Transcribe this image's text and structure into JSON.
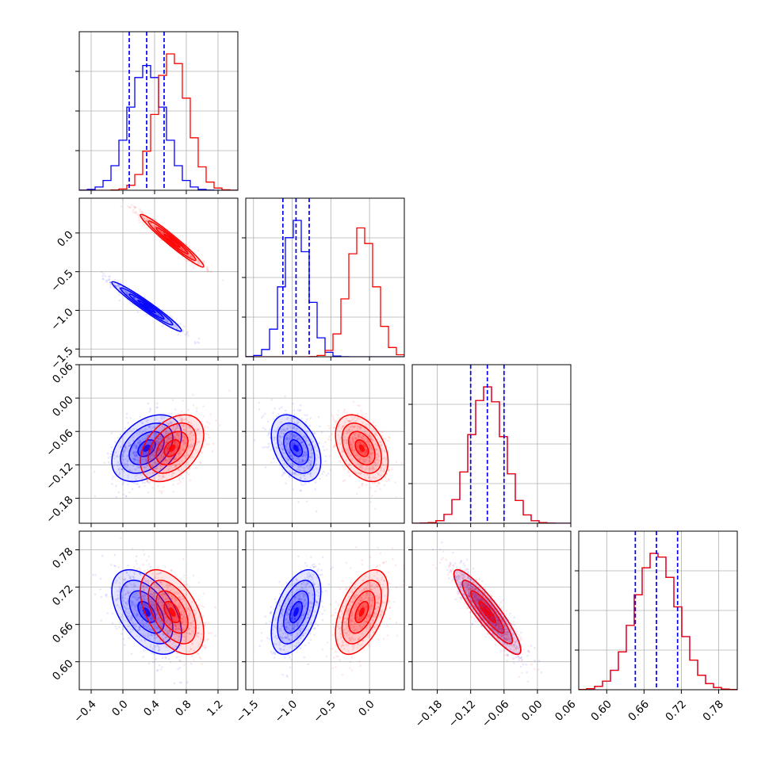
{
  "colors": {
    "series_a": "#0000ff",
    "series_b": "#ff0000",
    "grid": "#b0b0b0",
    "axes": "#000000"
  },
  "chart_data": {
    "type": "corner",
    "grid": true,
    "parameters": [
      {
        "range": [
          -0.55,
          1.45
        ],
        "ticks": [
          -0.4,
          0.0,
          0.4,
          0.8,
          1.2
        ],
        "tick_labels": [
          "−0.4",
          "0.0",
          "0.4",
          "0.8",
          "1.2"
        ]
      },
      {
        "range": [
          -1.6,
          0.45
        ],
        "ticks": [
          -1.5,
          -1.0,
          -0.5,
          0.0
        ],
        "tick_labels": [
          "−1.5",
          "−1.0",
          "−0.5",
          "0.0"
        ]
      },
      {
        "range": [
          -0.225,
          0.06
        ],
        "ticks": [
          -0.18,
          -0.12,
          -0.06,
          0.0,
          0.06
        ],
        "tick_labels": [
          "−0.18",
          "−0.12",
          "−0.06",
          "0.00",
          "0.06"
        ]
      },
      {
        "range": [
          0.555,
          0.81
        ],
        "ticks": [
          0.6,
          0.66,
          0.72,
          0.78
        ],
        "tick_labels": [
          "0.60",
          "0.66",
          "0.72",
          "0.78"
        ]
      }
    ],
    "y_tick_labels": {
      "1": [
        "0.0",
        "−0.5",
        "−1.0",
        "−1.5"
      ],
      "2": [
        "0.06",
        "0.00",
        "−0.06",
        "−0.12",
        "−0.18"
      ],
      "3": [
        "0.78",
        "0.72",
        "0.66",
        "0.60"
      ]
    },
    "series": [
      {
        "color": "#0000ff",
        "mean": [
          0.3,
          -0.95,
          -0.09,
          0.68
        ],
        "std": [
          0.22,
          0.16,
          0.03,
          0.034
        ],
        "quantiles": [
          [
            0.08,
            0.3,
            0.52
          ],
          [
            -1.12,
            -0.95,
            -0.78
          ],
          [
            -0.12,
            -0.09,
            -0.06
          ],
          [
            0.646,
            0.68,
            0.714
          ]
        ],
        "correlation": {
          "0-1": -0.97,
          "0-2": 0.4,
          "1-2": -0.4,
          "0-3": -0.5,
          "1-3": 0.5,
          "2-3": -0.9
        }
      },
      {
        "color": "#ff0000",
        "mean": [
          0.62,
          -0.1,
          -0.09,
          0.68
        ],
        "std": [
          0.2,
          0.17,
          0.03,
          0.034
        ],
        "quantiles": null,
        "correlation": {
          "0-1": -0.97,
          "0-2": 0.4,
          "1-2": -0.4,
          "0-3": -0.5,
          "1-3": 0.5,
          "2-3": -0.9
        }
      }
    ],
    "contour_levels_sigma": [
      0.5,
      1.0,
      1.5,
      2.0
    ]
  }
}
